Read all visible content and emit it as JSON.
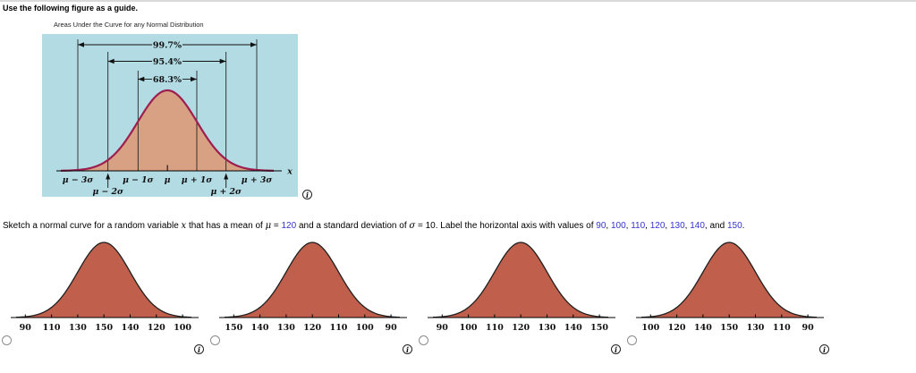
{
  "page": {
    "instruction": "Use the following figure as a guide."
  },
  "figure": {
    "title": "Areas Under the Curve for any Normal Distribution",
    "bands": [
      "99.7%",
      "95.4%",
      "68.3%"
    ],
    "axis_row1": [
      "μ − 3σ",
      "μ − 1σ",
      "μ",
      "μ + 1σ",
      "μ + 3σ"
    ],
    "axis_row2": [
      "μ − 2σ",
      "μ + 2σ"
    ],
    "x_axis_symbol": "x"
  },
  "question": {
    "segments": [
      {
        "text": "Sketch a normal curve for a random variable ",
        "style": "normal"
      },
      {
        "text": "x",
        "style": "italic"
      },
      {
        "text": " that has a mean of ",
        "style": "normal"
      },
      {
        "text": "μ",
        "style": "italic"
      },
      {
        "text": " = ",
        "style": "normal"
      },
      {
        "text": "120",
        "style": "value"
      },
      {
        "text": " and a standard deviation of ",
        "style": "normal"
      },
      {
        "text": "σ",
        "style": "italic"
      },
      {
        "text": " = 10. Label the horizontal axis with values of ",
        "style": "normal"
      },
      {
        "text": "90",
        "style": "value"
      },
      {
        "text": ", ",
        "style": "normal"
      },
      {
        "text": "100",
        "style": "value"
      },
      {
        "text": ", ",
        "style": "normal"
      },
      {
        "text": "110",
        "style": "value"
      },
      {
        "text": ", ",
        "style": "normal"
      },
      {
        "text": "120",
        "style": "value"
      },
      {
        "text": ", ",
        "style": "normal"
      },
      {
        "text": "130",
        "style": "value"
      },
      {
        "text": ", ",
        "style": "normal"
      },
      {
        "text": "140",
        "style": "value"
      },
      {
        "text": ", and ",
        "style": "normal"
      },
      {
        "text": "150",
        "style": "value"
      },
      {
        "text": ".",
        "style": "normal"
      }
    ]
  },
  "options": [
    {
      "axis_labels": [
        "90",
        "110",
        "130",
        "150",
        "140",
        "120",
        "100"
      ],
      "selected": false
    },
    {
      "axis_labels": [
        "150",
        "140",
        "130",
        "120",
        "110",
        "100",
        "90"
      ],
      "selected": false
    },
    {
      "axis_labels": [
        "90",
        "100",
        "110",
        "120",
        "130",
        "140",
        "150"
      ],
      "selected": false
    },
    {
      "axis_labels": [
        "100",
        "120",
        "140",
        "150",
        "130",
        "110",
        "90"
      ],
      "selected": false
    }
  ],
  "icons": {
    "info_glyph": "i"
  },
  "colors": {
    "figure_bg": "#b2dbe4",
    "figure_curve_fill": "#d9a183",
    "figure_curve_stroke": "#9d1f4f",
    "option_curve_fill": "#c05f4b",
    "option_curve_stroke": "#1f1f1f",
    "value_blue": "#3434cf"
  }
}
